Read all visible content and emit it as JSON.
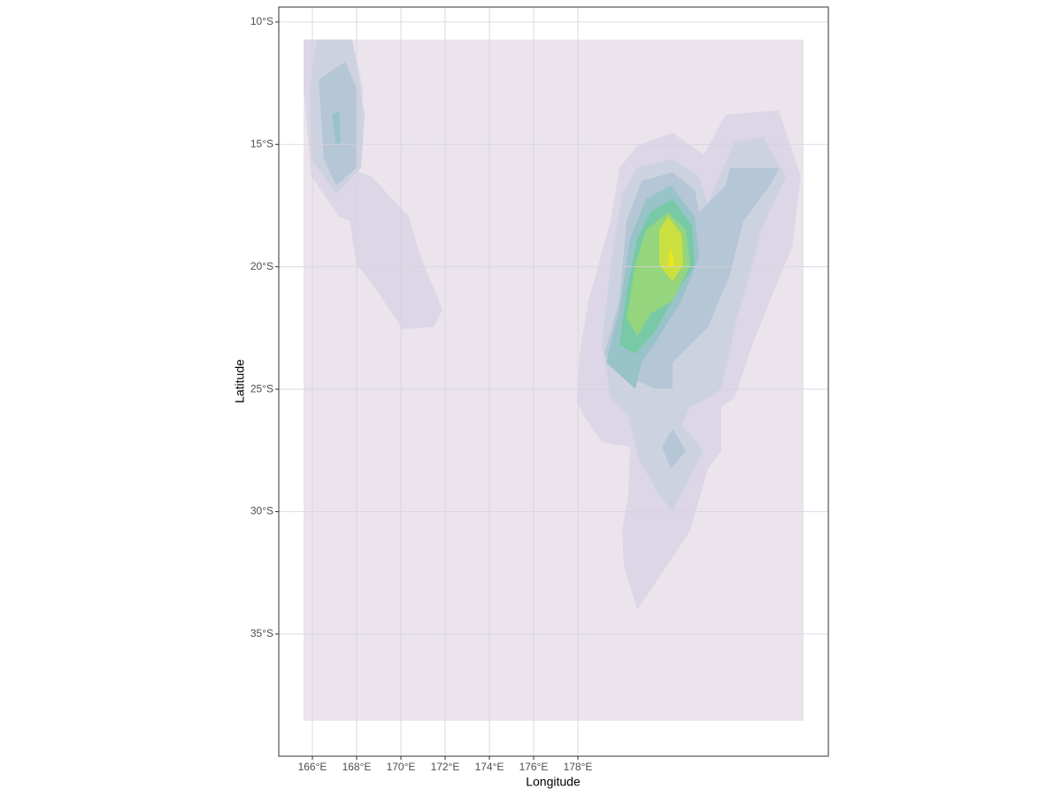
{
  "chart_data": {
    "type": "contour",
    "xlabel": "Longitude",
    "ylabel": "Latitude",
    "xlim": [
      164.48,
      189.32
    ],
    "ylim": [
      -39.99,
      -9.39
    ],
    "xticks": [
      {
        "value": 166,
        "label": "166°E"
      },
      {
        "value": 168,
        "label": "168°E"
      },
      {
        "value": 170,
        "label": "170°E"
      },
      {
        "value": 172,
        "label": "172°E"
      },
      {
        "value": 174,
        "label": "174°E"
      },
      {
        "value": 176,
        "label": "176°E"
      },
      {
        "value": 178,
        "label": "178°E"
      }
    ],
    "yticks": [
      {
        "value": -10,
        "label": "10°S"
      },
      {
        "value": -15,
        "label": "15°S"
      },
      {
        "value": -20,
        "label": "20°S"
      },
      {
        "value": -25,
        "label": "25°S"
      },
      {
        "value": -30,
        "label": "30°S"
      },
      {
        "value": -35,
        "label": "35°S"
      }
    ],
    "grid": true,
    "levels": [
      {
        "color": "#ebe4ed",
        "polygons": [
          {
            "x": [
              165.6,
              188.2,
              188.2,
              165.6
            ],
            "y": [
              -10.72,
              -10.72,
              -38.54,
              -38.54
            ]
          }
        ]
      },
      {
        "color": "#dcd6e6",
        "polygons": [
          {
            "x": [
              165.6,
              167.8,
              168.28,
              168.08,
              168.68,
              170.36,
              170.88,
              171.88,
              171.48,
              170.08,
              168.68,
              168.0,
              167.68,
              167.2,
              165.96,
              165.6
            ],
            "y": [
              -10.72,
              -10.72,
              -12.71,
              -16.14,
              -16.32,
              -17.95,
              -19.57,
              -21.74,
              -22.46,
              -22.54,
              -20.66,
              -19.93,
              -18.13,
              -17.95,
              -16.32,
              -12.71
            ]
          },
          {
            "x": [
              178.08,
              178.48,
              179.48,
              179.88,
              180.68,
              182.28,
              183.68,
              184.68,
              187.08,
              188.08,
              187.68,
              186.68,
              185.88,
              185.08,
              184.48,
              184.48,
              183.88,
              183.08,
              182.28,
              180.68,
              180.08,
              180.0,
              180.28,
              180.36,
              179.08,
              178.28,
              177.96
            ],
            "y": [
              -23.55,
              -21.38,
              -18.13,
              -15.96,
              -15.06,
              -14.52,
              -15.42,
              -13.79,
              -13.61,
              -16.32,
              -19.21,
              -21.38,
              -23.19,
              -25.35,
              -25.72,
              -27.52,
              -28.24,
              -30.77,
              -31.86,
              -34.02,
              -32.22,
              -30.77,
              -29.33,
              -27.34,
              -27.16,
              -26.08,
              -25.53
            ]
          }
        ]
      },
      {
        "color": "#cdd2e0",
        "polygons": [
          {
            "x": [
              166.2,
              167.8,
              168.36,
              168.2,
              167.08,
              165.96,
              165.88
            ],
            "y": [
              -10.72,
              -10.72,
              -13.79,
              -15.96,
              -17.04,
              -15.6,
              -12.71
            ]
          },
          {
            "x": [
              179.08,
              179.48,
              180.0,
              180.68,
              182.28,
              183.48,
              183.88,
              185.08,
              186.36,
              187.4,
              186.28,
              185.88,
              185.08,
              184.48,
              183.88,
              183.08,
              182.68,
              183.68,
              182.28,
              181.68,
              180.76,
              180.28,
              179.48
            ],
            "y": [
              -23.19,
              -19.93,
              -17.04,
              -15.96,
              -15.6,
              -16.32,
              -17.41,
              -14.88,
              -14.7,
              -16.32,
              -18.49,
              -19.93,
              -22.46,
              -24.99,
              -25.35,
              -25.72,
              -26.44,
              -27.52,
              -29.98,
              -29.33,
              -27.88,
              -26.08,
              -25.35
            ]
          }
        ]
      },
      {
        "color": "#b5c6d6",
        "polygons": [
          {
            "x": [
              166.28,
              167.48,
              168.0,
              168.0,
              167.08,
              166.52
            ],
            "y": [
              -12.35,
              -11.63,
              -12.71,
              -15.96,
              -16.68,
              -15.6
            ]
          },
          {
            "x": [
              179.2,
              179.88,
              180.2,
              180.88,
              182.28,
              183.28,
              183.48,
              184.68,
              184.88,
              187.08,
              186.68,
              185.48,
              184.88,
              183.88,
              182.68,
              182.28,
              182.28,
              181.48,
              180.68,
              179.88
            ],
            "y": [
              -23.55,
              -21.38,
              -18.13,
              -16.5,
              -16.14,
              -16.86,
              -17.77,
              -16.68,
              -15.96,
              -15.96,
              -16.68,
              -18.13,
              -20.3,
              -22.46,
              -23.55,
              -23.91,
              -24.99,
              -24.99,
              -24.63,
              -24.27
            ]
          },
          {
            "x": [
              181.8,
              182.28,
              182.88,
              182.2
            ],
            "y": [
              -27.34,
              -26.62,
              -27.52,
              -28.24
            ]
          }
        ]
      },
      {
        "color": "#98c3c8",
        "polygons": [
          {
            "x": [
              166.88,
              167.2,
              167.28,
              167.08
            ],
            "y": [
              -13.79,
              -13.61,
              -14.88,
              -15.06
            ]
          },
          {
            "x": [
              179.28,
              179.88,
              180.36,
              181.08,
              182.2,
              183.28,
              183.48,
              182.68,
              181.68,
              180.88,
              180.6
            ],
            "y": [
              -23.91,
              -21.74,
              -18.85,
              -17.23,
              -16.68,
              -17.95,
              -19.57,
              -21.38,
              -22.83,
              -23.91,
              -24.99
            ]
          }
        ]
      },
      {
        "color": "#78c9a6",
        "polygons": [
          {
            "x": [
              179.88,
              180.2,
              180.68,
              181.28,
              182.28,
              183.16,
              183.28,
              182.48,
              181.48,
              180.6
            ],
            "y": [
              -23.19,
              -21.02,
              -18.85,
              -17.77,
              -17.23,
              -18.31,
              -19.93,
              -21.02,
              -22.64,
              -23.55
            ]
          }
        ]
      },
      {
        "color": "#95d57e",
        "polygons": [
          {
            "x": [
              180.2,
              180.6,
              181.08,
              182.08,
              182.88,
              183.08,
              182.28,
              181.28,
              180.68
            ],
            "y": [
              -22.1,
              -19.93,
              -18.49,
              -17.77,
              -18.49,
              -19.93,
              -21.38,
              -21.92,
              -22.83
            ]
          }
        ]
      },
      {
        "color": "#cbe040",
        "polygons": [
          {
            "x": [
              181.68,
              181.68,
              182.08,
              182.68,
              182.76,
              182.28
            ],
            "y": [
              -19.93,
              -18.49,
              -17.95,
              -18.67,
              -19.93,
              -20.59
            ]
          }
        ]
      },
      {
        "color": "#efe51a",
        "polygons": [
          {
            "x": [
              182.08,
              182.2,
              182.36
            ],
            "y": [
              -20.01,
              -19.21,
              -19.93
            ]
          }
        ]
      }
    ]
  }
}
